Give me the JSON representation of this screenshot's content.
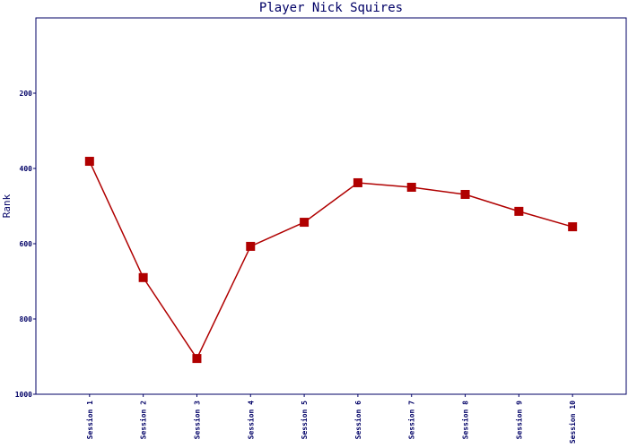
{
  "chart_data": {
    "type": "line",
    "title": "Player Nick Squires",
    "y_label": "Rank",
    "categories": [
      "Session 1",
      "Session 2",
      "Session 3",
      "Session 4",
      "Session 5",
      "Session 6",
      "Session 7",
      "Session 8",
      "Session 9",
      "Session 10"
    ],
    "series": [
      {
        "name": "Rank",
        "color": "#b00000",
        "values": [
          381,
          690,
          905,
          607,
          543,
          438,
          450,
          469,
          514,
          555
        ]
      }
    ],
    "ylim": [
      0,
      1000
    ],
    "yticks": [
      200,
      400,
      600,
      800,
      1000
    ],
    "y_inverted": true,
    "grid": false
  }
}
